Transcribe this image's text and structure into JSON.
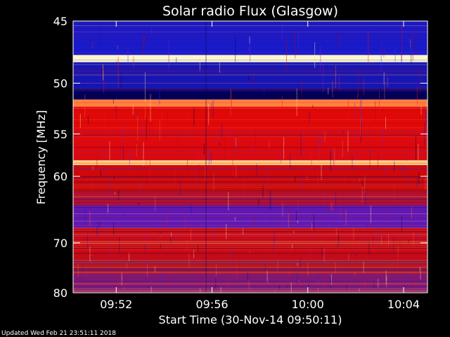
{
  "chart_data": {
    "type": "heatmap",
    "title": "Solar radio Flux (Glasgow)",
    "xlabel": "Start Time (30-Nov-14 09:50:11)",
    "ylabel": "Frequency [MHz]",
    "footer": "Updated Wed Feb 21 23:51:11 2018",
    "x_unit": "minutes after 09:50",
    "xlim": [
      0.2,
      15.0
    ],
    "ylim": [
      45,
      80
    ],
    "x_ticks": [
      {
        "value": 2,
        "label": "09:52"
      },
      {
        "value": 6,
        "label": "09:56"
      },
      {
        "value": 10,
        "label": "10:00"
      },
      {
        "value": 14,
        "label": "10:04"
      }
    ],
    "y_ticks": [
      {
        "value": 45,
        "label": "45"
      },
      {
        "value": 50,
        "label": "50"
      },
      {
        "value": 55,
        "label": "55"
      },
      {
        "value": 60,
        "label": "60"
      },
      {
        "value": 70,
        "label": "70"
      },
      {
        "value": 80,
        "label": "80"
      }
    ],
    "colormap": [
      "#000040",
      "#1010b0",
      "#3030ff",
      "#8020c0",
      "#c00000",
      "#ff1010",
      "#ff6040",
      "#ffe0a0"
    ],
    "segment_break_minute": 5.75,
    "frequency_bands": [
      {
        "from": 45,
        "to": 47.6,
        "color": "#1a1ac8"
      },
      {
        "from": 47.6,
        "to": 48.2,
        "color": "#fff6c8"
      },
      {
        "from": 48.2,
        "to": 50.5,
        "color": "#1616b4"
      },
      {
        "from": 50.5,
        "to": 51.5,
        "color": "#00005a"
      },
      {
        "from": 51.5,
        "to": 52.2,
        "color": "#ff8040"
      },
      {
        "from": 52.2,
        "to": 58.0,
        "color": "#e00808"
      },
      {
        "from": 58.0,
        "to": 58.6,
        "color": "#ffd080"
      },
      {
        "from": 58.6,
        "to": 62.0,
        "color": "#d00808"
      },
      {
        "from": 62.0,
        "to": 64.0,
        "color": "#b01030"
      },
      {
        "from": 64.0,
        "to": 67.5,
        "color": "#6018b0"
      },
      {
        "from": 67.5,
        "to": 73.0,
        "color": "#c80a14"
      },
      {
        "from": 73.0,
        "to": 76.0,
        "color": "#b01428"
      },
      {
        "from": 76.0,
        "to": 80.0,
        "color": "#801870"
      }
    ]
  }
}
